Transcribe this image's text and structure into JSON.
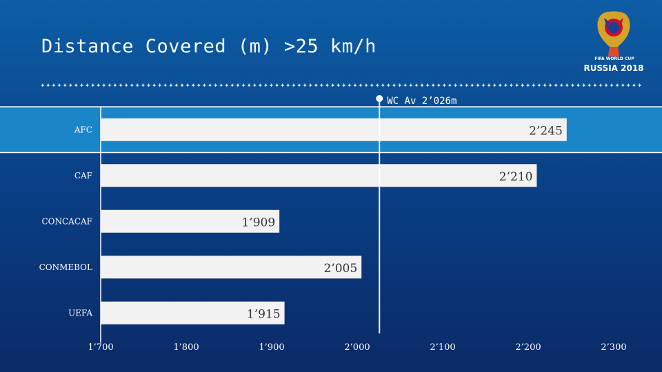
{
  "slide": {
    "title": "Distance Covered (m) >25 km/h"
  },
  "logo": {
    "line1": "FIFA WORLD CUP",
    "line2": "RUSSIA 2018"
  },
  "colors": {
    "bar": "#f2f2f2",
    "highlight_band": "#1a86c8",
    "text_dark": "#333333"
  },
  "chart_data": {
    "type": "bar",
    "orientation": "horizontal",
    "categories": [
      "AFC",
      "CAF",
      "CONCACAF",
      "CONMEBOL",
      "UEFA"
    ],
    "values": [
      2245,
      2210,
      1909,
      2005,
      1915
    ],
    "value_labels": [
      "2’245",
      "2’210",
      "1’909",
      "2’005",
      "1’915"
    ],
    "highlighted_category": "AFC",
    "xlim": [
      1700,
      2300
    ],
    "x_ticks": [
      1700,
      1800,
      1900,
      2000,
      2100,
      2200,
      2300
    ],
    "x_tick_labels": [
      "1’700",
      "1’800",
      "1’900",
      "2’000",
      "2’100",
      "2’200",
      "2’300"
    ],
    "reference_line": {
      "value": 2026,
      "label": "WC Av 2’026m"
    },
    "grid": false,
    "legend": "none"
  }
}
